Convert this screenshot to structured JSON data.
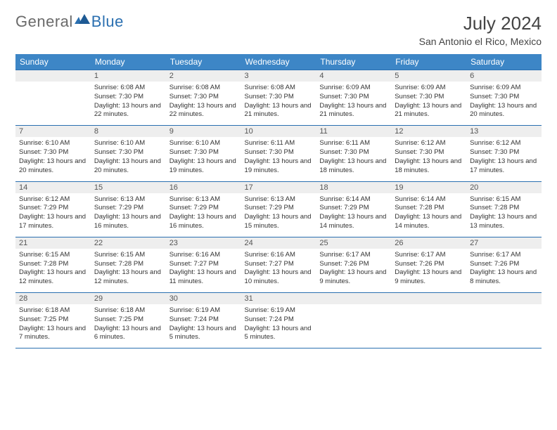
{
  "brand": {
    "part1": "General",
    "part2": "Blue"
  },
  "title": "July 2024",
  "location": "San Antonio el Rico, Mexico",
  "colors": {
    "header_bg": "#3d86c6",
    "header_text": "#ffffff",
    "daynum_bg": "#eeeeee",
    "border": "#2a6fb0",
    "logo_gray": "#6a6a6a",
    "logo_blue": "#2a6fb0",
    "body_text": "#333333"
  },
  "dow": [
    "Sunday",
    "Monday",
    "Tuesday",
    "Wednesday",
    "Thursday",
    "Friday",
    "Saturday"
  ],
  "weeks": [
    [
      {
        "n": "",
        "sr": "",
        "ss": "",
        "dl": ""
      },
      {
        "n": "1",
        "sr": "Sunrise: 6:08 AM",
        "ss": "Sunset: 7:30 PM",
        "dl": "Daylight: 13 hours and 22 minutes."
      },
      {
        "n": "2",
        "sr": "Sunrise: 6:08 AM",
        "ss": "Sunset: 7:30 PM",
        "dl": "Daylight: 13 hours and 22 minutes."
      },
      {
        "n": "3",
        "sr": "Sunrise: 6:08 AM",
        "ss": "Sunset: 7:30 PM",
        "dl": "Daylight: 13 hours and 21 minutes."
      },
      {
        "n": "4",
        "sr": "Sunrise: 6:09 AM",
        "ss": "Sunset: 7:30 PM",
        "dl": "Daylight: 13 hours and 21 minutes."
      },
      {
        "n": "5",
        "sr": "Sunrise: 6:09 AM",
        "ss": "Sunset: 7:30 PM",
        "dl": "Daylight: 13 hours and 21 minutes."
      },
      {
        "n": "6",
        "sr": "Sunrise: 6:09 AM",
        "ss": "Sunset: 7:30 PM",
        "dl": "Daylight: 13 hours and 20 minutes."
      }
    ],
    [
      {
        "n": "7",
        "sr": "Sunrise: 6:10 AM",
        "ss": "Sunset: 7:30 PM",
        "dl": "Daylight: 13 hours and 20 minutes."
      },
      {
        "n": "8",
        "sr": "Sunrise: 6:10 AM",
        "ss": "Sunset: 7:30 PM",
        "dl": "Daylight: 13 hours and 20 minutes."
      },
      {
        "n": "9",
        "sr": "Sunrise: 6:10 AM",
        "ss": "Sunset: 7:30 PM",
        "dl": "Daylight: 13 hours and 19 minutes."
      },
      {
        "n": "10",
        "sr": "Sunrise: 6:11 AM",
        "ss": "Sunset: 7:30 PM",
        "dl": "Daylight: 13 hours and 19 minutes."
      },
      {
        "n": "11",
        "sr": "Sunrise: 6:11 AM",
        "ss": "Sunset: 7:30 PM",
        "dl": "Daylight: 13 hours and 18 minutes."
      },
      {
        "n": "12",
        "sr": "Sunrise: 6:12 AM",
        "ss": "Sunset: 7:30 PM",
        "dl": "Daylight: 13 hours and 18 minutes."
      },
      {
        "n": "13",
        "sr": "Sunrise: 6:12 AM",
        "ss": "Sunset: 7:30 PM",
        "dl": "Daylight: 13 hours and 17 minutes."
      }
    ],
    [
      {
        "n": "14",
        "sr": "Sunrise: 6:12 AM",
        "ss": "Sunset: 7:29 PM",
        "dl": "Daylight: 13 hours and 17 minutes."
      },
      {
        "n": "15",
        "sr": "Sunrise: 6:13 AM",
        "ss": "Sunset: 7:29 PM",
        "dl": "Daylight: 13 hours and 16 minutes."
      },
      {
        "n": "16",
        "sr": "Sunrise: 6:13 AM",
        "ss": "Sunset: 7:29 PM",
        "dl": "Daylight: 13 hours and 16 minutes."
      },
      {
        "n": "17",
        "sr": "Sunrise: 6:13 AM",
        "ss": "Sunset: 7:29 PM",
        "dl": "Daylight: 13 hours and 15 minutes."
      },
      {
        "n": "18",
        "sr": "Sunrise: 6:14 AM",
        "ss": "Sunset: 7:29 PM",
        "dl": "Daylight: 13 hours and 14 minutes."
      },
      {
        "n": "19",
        "sr": "Sunrise: 6:14 AM",
        "ss": "Sunset: 7:28 PM",
        "dl": "Daylight: 13 hours and 14 minutes."
      },
      {
        "n": "20",
        "sr": "Sunrise: 6:15 AM",
        "ss": "Sunset: 7:28 PM",
        "dl": "Daylight: 13 hours and 13 minutes."
      }
    ],
    [
      {
        "n": "21",
        "sr": "Sunrise: 6:15 AM",
        "ss": "Sunset: 7:28 PM",
        "dl": "Daylight: 13 hours and 12 minutes."
      },
      {
        "n": "22",
        "sr": "Sunrise: 6:15 AM",
        "ss": "Sunset: 7:28 PM",
        "dl": "Daylight: 13 hours and 12 minutes."
      },
      {
        "n": "23",
        "sr": "Sunrise: 6:16 AM",
        "ss": "Sunset: 7:27 PM",
        "dl": "Daylight: 13 hours and 11 minutes."
      },
      {
        "n": "24",
        "sr": "Sunrise: 6:16 AM",
        "ss": "Sunset: 7:27 PM",
        "dl": "Daylight: 13 hours and 10 minutes."
      },
      {
        "n": "25",
        "sr": "Sunrise: 6:17 AM",
        "ss": "Sunset: 7:26 PM",
        "dl": "Daylight: 13 hours and 9 minutes."
      },
      {
        "n": "26",
        "sr": "Sunrise: 6:17 AM",
        "ss": "Sunset: 7:26 PM",
        "dl": "Daylight: 13 hours and 9 minutes."
      },
      {
        "n": "27",
        "sr": "Sunrise: 6:17 AM",
        "ss": "Sunset: 7:26 PM",
        "dl": "Daylight: 13 hours and 8 minutes."
      }
    ],
    [
      {
        "n": "28",
        "sr": "Sunrise: 6:18 AM",
        "ss": "Sunset: 7:25 PM",
        "dl": "Daylight: 13 hours and 7 minutes."
      },
      {
        "n": "29",
        "sr": "Sunrise: 6:18 AM",
        "ss": "Sunset: 7:25 PM",
        "dl": "Daylight: 13 hours and 6 minutes."
      },
      {
        "n": "30",
        "sr": "Sunrise: 6:19 AM",
        "ss": "Sunset: 7:24 PM",
        "dl": "Daylight: 13 hours and 5 minutes."
      },
      {
        "n": "31",
        "sr": "Sunrise: 6:19 AM",
        "ss": "Sunset: 7:24 PM",
        "dl": "Daylight: 13 hours and 5 minutes."
      },
      {
        "n": "",
        "sr": "",
        "ss": "",
        "dl": ""
      },
      {
        "n": "",
        "sr": "",
        "ss": "",
        "dl": ""
      },
      {
        "n": "",
        "sr": "",
        "ss": "",
        "dl": ""
      }
    ]
  ]
}
